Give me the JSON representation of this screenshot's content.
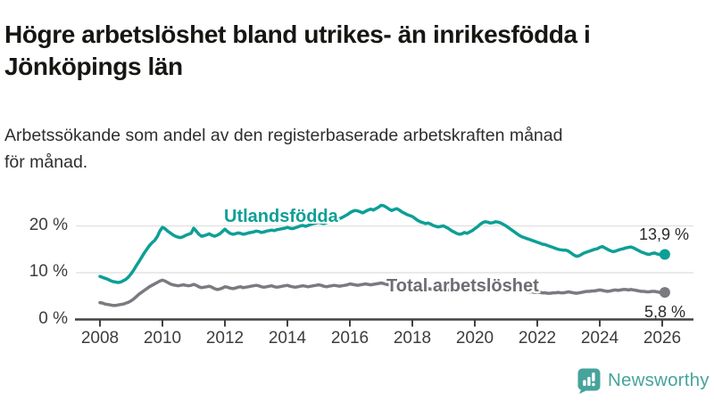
{
  "header": {
    "title": "Högre arbetslöshet bland utrikes- än inrikesfödda i\nJönköpings län",
    "subtitle": "Arbetssökande som andel av den registerbaserade arbetskraften månad\nför månad."
  },
  "chart_data": {
    "type": "line",
    "title": "Högre arbetslöshet bland utrikes- än inrikesfödda i Jönköpings län",
    "subtitle": "Arbetssökande som andel av den registerbaserade arbetskraften månad för månad.",
    "frequency": "monthly",
    "x_start_year": 2008,
    "x_end": "2026-02",
    "ylim": [
      0,
      26
    ],
    "grid": "horizontal",
    "y_tick_labels": [
      "20 %",
      "10 %",
      "0 %"
    ],
    "y_tick_values": [
      20,
      10,
      0
    ],
    "x_tick_years": [
      2008,
      2010,
      2012,
      2014,
      2016,
      2018,
      2020,
      2022,
      2024,
      2026
    ],
    "colors": {
      "utlandsfodda": "#0d9f96",
      "total": "#7a7a80",
      "gridline": "#e4e4e4",
      "axis": "#424242"
    },
    "series": [
      {
        "name": "Utlandsfödda",
        "color": "#0d9f96",
        "end_label": "13,9 %",
        "end_value": 13.9,
        "values": [
          9.2,
          9.0,
          8.8,
          8.6,
          8.3,
          8.1,
          8.0,
          7.9,
          8.0,
          8.3,
          8.6,
          9.1,
          9.8,
          10.6,
          11.5,
          12.4,
          13.3,
          14.2,
          15.0,
          15.8,
          16.4,
          16.9,
          17.7,
          18.9,
          19.7,
          19.4,
          18.9,
          18.5,
          18.1,
          17.8,
          17.6,
          17.5,
          17.7,
          18.0,
          18.2,
          18.4,
          19.5,
          18.9,
          18.2,
          17.8,
          17.9,
          18.1,
          18.3,
          18.0,
          17.8,
          18.0,
          18.3,
          18.8,
          19.3,
          18.8,
          18.4,
          18.2,
          18.3,
          18.5,
          18.4,
          18.2,
          18.3,
          18.5,
          18.6,
          18.7,
          18.9,
          18.8,
          18.6,
          18.7,
          18.9,
          19.0,
          19.1,
          19.0,
          19.2,
          19.3,
          19.4,
          19.5,
          19.7,
          19.5,
          19.4,
          19.6,
          19.8,
          20.0,
          20.1,
          19.9,
          20.1,
          20.3,
          20.5,
          20.6,
          20.8,
          20.6,
          20.5,
          20.7,
          20.9,
          21.1,
          21.3,
          21.2,
          21.5,
          21.8,
          22.1,
          22.4,
          22.8,
          23.1,
          23.3,
          23.2,
          23.0,
          22.8,
          23.1,
          23.4,
          23.6,
          23.4,
          23.7,
          24.0,
          24.4,
          24.3,
          24.0,
          23.6,
          23.3,
          23.5,
          23.7,
          23.4,
          23.0,
          22.7,
          22.4,
          22.2,
          22.0,
          21.6,
          21.2,
          20.9,
          20.7,
          20.5,
          20.6,
          20.4,
          20.1,
          19.9,
          19.8,
          19.9,
          20.0,
          19.7,
          19.4,
          19.0,
          18.7,
          18.4,
          18.2,
          18.3,
          18.6,
          18.4,
          18.7,
          19.0,
          19.4,
          19.8,
          20.3,
          20.7,
          20.9,
          20.8,
          20.6,
          20.7,
          20.9,
          20.8,
          20.6,
          20.3,
          20.0,
          19.6,
          19.2,
          18.8,
          18.4,
          18.0,
          17.7,
          17.5,
          17.3,
          17.1,
          16.9,
          16.7,
          16.5,
          16.3,
          16.1,
          16.0,
          15.8,
          15.6,
          15.4,
          15.2,
          15.0,
          14.9,
          14.8,
          14.8,
          14.6,
          14.2,
          13.8,
          13.5,
          13.6,
          13.9,
          14.2,
          14.4,
          14.6,
          14.8,
          15.0,
          15.1,
          15.4,
          15.6,
          15.3,
          15.0,
          14.7,
          14.5,
          14.6,
          14.8,
          15.0,
          15.1,
          15.3,
          15.4,
          15.5,
          15.3,
          15.0,
          14.7,
          14.4,
          14.2,
          14.0,
          13.9,
          14.1,
          14.2,
          14.0,
          13.9,
          13.8,
          13.9
        ]
      },
      {
        "name": "Total arbetslöshet",
        "color": "#7a7a80",
        "end_label": "5,8 %",
        "end_value": 5.8,
        "values": [
          3.6,
          3.5,
          3.3,
          3.2,
          3.1,
          3.0,
          3.0,
          3.1,
          3.2,
          3.3,
          3.5,
          3.7,
          4.0,
          4.4,
          4.9,
          5.4,
          5.8,
          6.2,
          6.6,
          7.0,
          7.3,
          7.6,
          7.9,
          8.2,
          8.4,
          8.2,
          7.9,
          7.6,
          7.4,
          7.3,
          7.2,
          7.3,
          7.4,
          7.3,
          7.2,
          7.3,
          7.5,
          7.3,
          7.0,
          6.8,
          6.9,
          7.0,
          7.1,
          6.9,
          6.6,
          6.4,
          6.5,
          6.7,
          7.0,
          6.9,
          6.7,
          6.6,
          6.7,
          6.9,
          7.0,
          6.8,
          6.9,
          7.0,
          7.1,
          7.2,
          7.3,
          7.2,
          7.0,
          6.9,
          7.0,
          7.1,
          7.2,
          7.0,
          6.9,
          7.0,
          7.1,
          7.2,
          7.3,
          7.1,
          7.0,
          6.9,
          7.0,
          7.1,
          7.2,
          7.1,
          7.0,
          7.1,
          7.2,
          7.3,
          7.4,
          7.3,
          7.1,
          7.0,
          7.1,
          7.2,
          7.3,
          7.2,
          7.1,
          7.2,
          7.3,
          7.4,
          7.6,
          7.5,
          7.4,
          7.3,
          7.4,
          7.5,
          7.6,
          7.5,
          7.4,
          7.5,
          7.6,
          7.7,
          7.8,
          7.7,
          7.5,
          7.4,
          7.3,
          7.4,
          7.5,
          7.4,
          7.2,
          7.1,
          7.0,
          7.0,
          7.1,
          6.9,
          6.8,
          6.7,
          6.6,
          6.5,
          6.6,
          6.5,
          6.4,
          6.3,
          6.3,
          6.4,
          6.5,
          6.4,
          6.3,
          6.2,
          6.3,
          6.4,
          6.5,
          6.4,
          6.5,
          6.6,
          6.7,
          6.8,
          7.0,
          7.2,
          7.6,
          7.9,
          8.0,
          7.9,
          7.8,
          7.8,
          7.7,
          7.6,
          7.4,
          7.3,
          7.2,
          7.0,
          6.9,
          6.7,
          6.5,
          6.4,
          6.2,
          6.1,
          6.0,
          5.9,
          5.9,
          5.8,
          5.9,
          5.8,
          5.7,
          5.7,
          5.6,
          5.6,
          5.7,
          5.7,
          5.8,
          5.7,
          5.7,
          5.8,
          5.9,
          5.8,
          5.7,
          5.6,
          5.7,
          5.8,
          5.9,
          6.0,
          6.0,
          6.1,
          6.1,
          6.2,
          6.3,
          6.2,
          6.1,
          6.0,
          6.1,
          6.2,
          6.3,
          6.2,
          6.3,
          6.4,
          6.4,
          6.3,
          6.4,
          6.3,
          6.2,
          6.1,
          6.0,
          6.0,
          5.9,
          5.9,
          6.0,
          6.0,
          5.9,
          5.8,
          5.8,
          5.8
        ]
      }
    ]
  },
  "footer": {
    "brand": "Newsworthy"
  }
}
